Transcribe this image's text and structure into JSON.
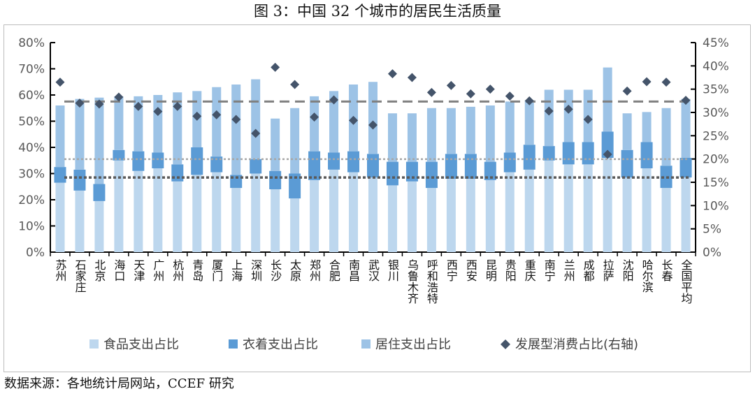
{
  "title": "图 3：中国 32 个城市的居民生活质量",
  "source": "数据来源：各地统计局网站，CCEF 研究",
  "chart_data": {
    "type": "bar",
    "subtype": "stacked bar with scatter on secondary axis",
    "title": "图 3：中国 32 个城市的居民生活质量",
    "categories": [
      "苏州",
      "石家庄",
      "北京",
      "海口",
      "天津",
      "广州",
      "杭州",
      "青岛",
      "厦门",
      "上海",
      "深圳",
      "长沙",
      "太原",
      "郑州",
      "合肥",
      "南昌",
      "武汉",
      "银川",
      "乌鲁木齐",
      "呼和浩特",
      "西宁",
      "西安",
      "昆明",
      "贵阳",
      "重庆",
      "南宁",
      "兰州",
      "成都",
      "拉萨",
      "沈阳",
      "哈尔滨",
      "长春",
      "全国平均"
    ],
    "series": [
      {
        "name": "食品支出占比",
        "axis": "left",
        "kind": "bar",
        "color": "#bdd7ee",
        "values": [
          26.5,
          23.5,
          19.5,
          35,
          31,
          32,
          27,
          29.5,
          30.5,
          24.5,
          30,
          24,
          20.5,
          27.5,
          31.5,
          30.5,
          28.5,
          25.5,
          27,
          24.5,
          28,
          28,
          27.5,
          30.5,
          31.5,
          35,
          33.5,
          33.5,
          36,
          28.5,
          32,
          24.5,
          28.5
        ]
      },
      {
        "name": "衣着支出占比",
        "axis": "left",
        "kind": "bar",
        "color": "#5b9bd5",
        "values": [
          6,
          8,
          6.5,
          4,
          7.5,
          6,
          6.5,
          10.5,
          6,
          5,
          5.5,
          7,
          9.5,
          11,
          6.5,
          8,
          9,
          9,
          7.5,
          10,
          9.5,
          9.5,
          7,
          7.5,
          9.5,
          5.5,
          8.5,
          8.5,
          10,
          10.5,
          10,
          8.5,
          7.5
        ]
      },
      {
        "name": "居住支出占比",
        "axis": "left",
        "kind": "bar",
        "color": "#9dc3e6",
        "values": [
          23.5,
          27,
          33,
          20.5,
          21,
          22,
          27.5,
          21.5,
          26.5,
          34.5,
          30.5,
          20,
          25,
          21,
          23.5,
          25.5,
          27.5,
          18.5,
          18.5,
          20.5,
          17.5,
          18,
          21.5,
          19.5,
          17,
          21.5,
          20,
          20,
          24.5,
          14,
          11.5,
          22,
          22.5
        ]
      },
      {
        "name": "发展型消费占比(右轴)",
        "axis": "right",
        "kind": "scatter",
        "marker": "diamond",
        "color": "#44546a",
        "values": [
          36.5,
          32,
          31.8,
          33.3,
          31.3,
          30.2,
          31.3,
          29.2,
          29.5,
          28.5,
          25.5,
          39.7,
          36,
          29,
          32.7,
          28.3,
          27.3,
          38.3,
          37.5,
          34.3,
          35.8,
          34,
          35,
          33.5,
          32.5,
          30.3,
          30.7,
          28.5,
          21,
          34.6,
          36.6,
          36.5,
          32.6
        ]
      }
    ],
    "reference_lines": [
      {
        "axis": "left",
        "value": 57.5,
        "style": "dashed",
        "color": "#808080"
      },
      {
        "axis": "left",
        "value": 35.5,
        "style": "dotted",
        "color": "#a6a6a6"
      },
      {
        "axis": "left",
        "value": 28.5,
        "style": "dotted",
        "color": "#595959"
      }
    ],
    "y_left": {
      "min": 0,
      "max": 80,
      "step": 10,
      "ticks": [
        "0%",
        "10%",
        "20%",
        "30%",
        "40%",
        "50%",
        "60%",
        "70%",
        "80%"
      ]
    },
    "y_right": {
      "min": 0,
      "max": 45,
      "step": 5,
      "ticks": [
        "0%",
        "5%",
        "10%",
        "15%",
        "20%",
        "25%",
        "30%",
        "35%",
        "40%",
        "45%"
      ]
    },
    "grid": false,
    "legend_position": "bottom"
  }
}
